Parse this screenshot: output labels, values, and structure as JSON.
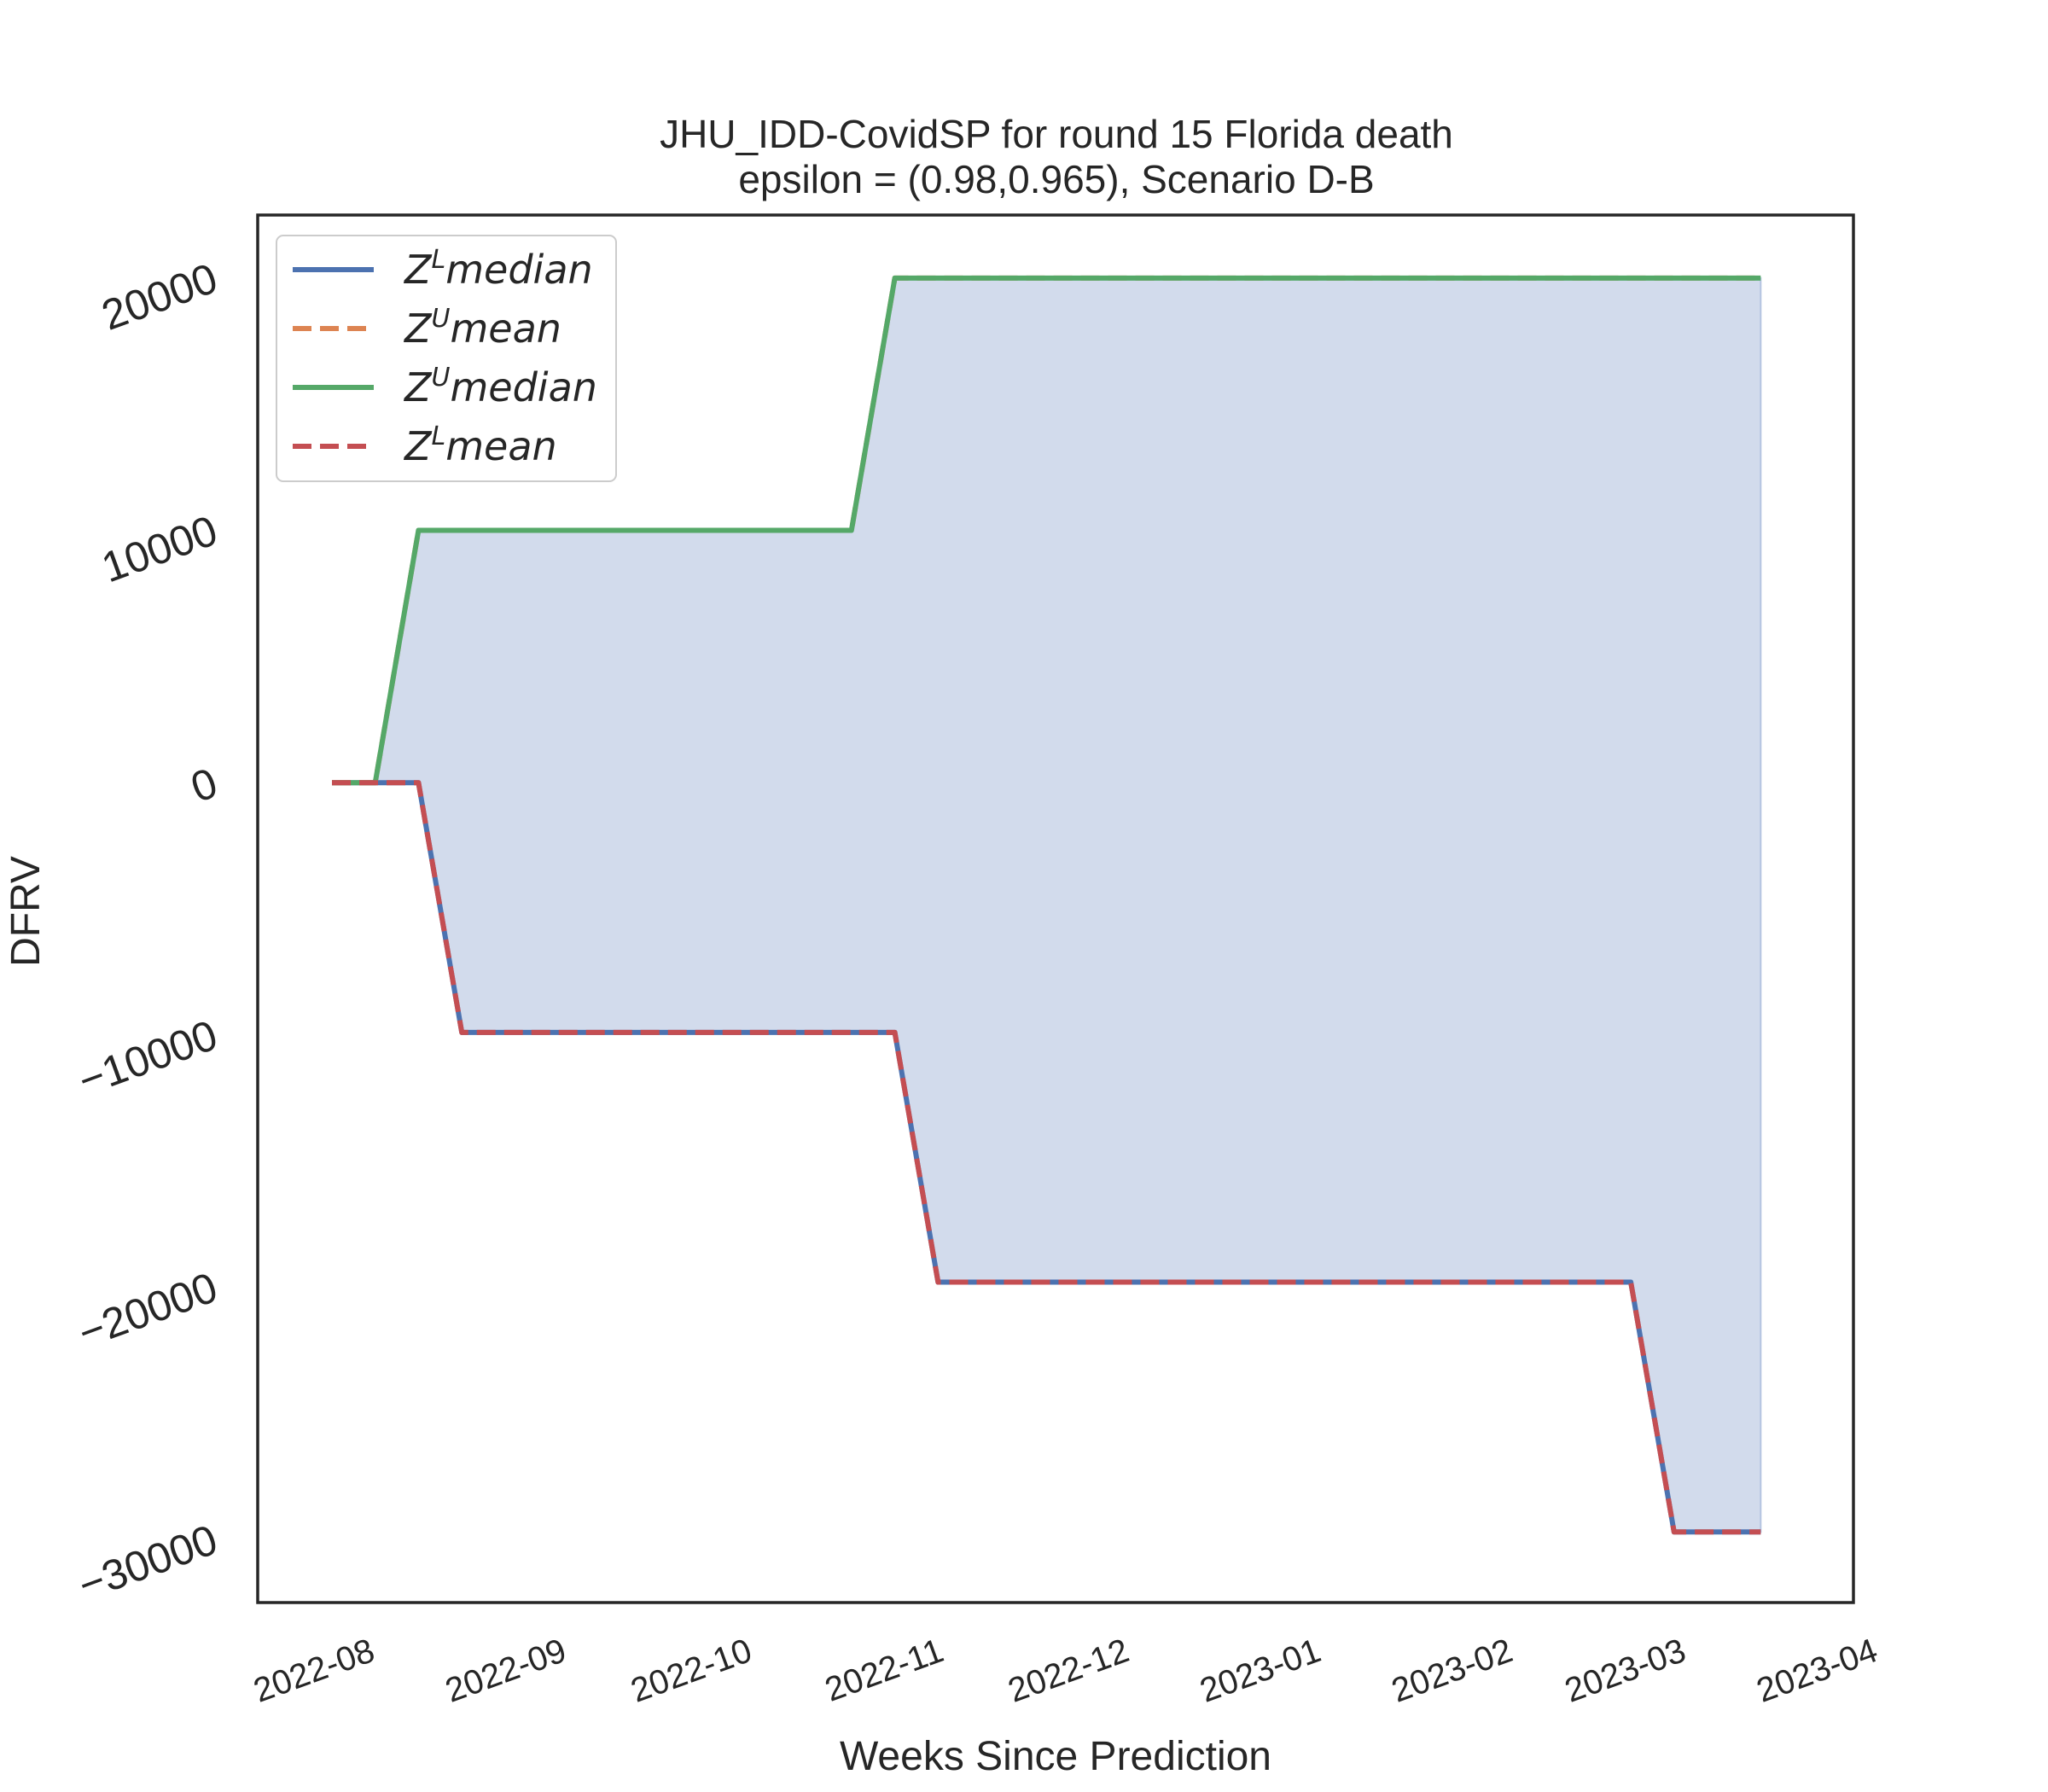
{
  "chart_data": {
    "type": "line",
    "title": "JHU_IDD-CovidSP for round 15 Florida  death",
    "subtitle": "epsilon = (0.98,0.965), Scenario D-B",
    "xlabel": "Weeks Since Prediction",
    "ylabel": "DFRV",
    "xlim": [
      "2022-07-18",
      "2023-04-02"
    ],
    "ylim": [
      -32500,
      22500
    ],
    "yticks": [
      20000,
      10000,
      0,
      -10000,
      -20000,
      -30000
    ],
    "ytick_labels": [
      "20000",
      "10000",
      "0",
      "−10000",
      "−20000",
      "−30000"
    ],
    "xticks": [
      "2022-08-01",
      "2022-09-01",
      "2022-10-01",
      "2022-11-01",
      "2022-12-01",
      "2023-01-01",
      "2023-02-01",
      "2023-03-01",
      "2023-04-01"
    ],
    "xtick_labels": [
      "2022-08",
      "2022-09",
      "2022-10",
      "2022-11",
      "2022-12",
      "2023-01",
      "2023-02",
      "2023-03",
      "2023-04"
    ],
    "legend_position": "top-left",
    "grid": false,
    "fill_between": {
      "lower": "Z^L median",
      "upper": "Z^U median",
      "color": "#d2dbec"
    },
    "series": [
      {
        "name": "Z^L median",
        "legend_base": "Z",
        "legend_sup": "L",
        "legend_rest": "median",
        "color": "#4c72b0",
        "style": "solid",
        "x": [
          "2022-07-30",
          "2022-08-06",
          "2022-08-13",
          "2022-08-20",
          "2022-08-27",
          "2022-09-03",
          "2022-09-10",
          "2022-09-17",
          "2022-09-24",
          "2022-10-01",
          "2022-10-08",
          "2022-10-15",
          "2022-10-22",
          "2022-10-29",
          "2022-11-05",
          "2022-11-12",
          "2022-11-19",
          "2022-11-26",
          "2022-12-03",
          "2022-12-10",
          "2022-12-17",
          "2022-12-24",
          "2022-12-31",
          "2023-01-07",
          "2023-01-14",
          "2023-01-21",
          "2023-01-28",
          "2023-02-04",
          "2023-02-11",
          "2023-02-18",
          "2023-02-25",
          "2023-03-04",
          "2023-03-11",
          "2023-03-18"
        ],
        "y": [
          0,
          0,
          0,
          -9900,
          -9900,
          -9900,
          -9900,
          -9900,
          -9900,
          -9900,
          -9900,
          -9900,
          -9900,
          -9900,
          -19800,
          -19800,
          -19800,
          -19800,
          -19800,
          -19800,
          -19800,
          -19800,
          -19800,
          -19800,
          -19800,
          -19800,
          -19800,
          -19800,
          -19800,
          -19800,
          -19800,
          -29700,
          -29700,
          -29700
        ]
      },
      {
        "name": "Z^U mean",
        "legend_base": "Z",
        "legend_sup": "U",
        "legend_rest": "mean",
        "color": "#dd8452",
        "style": "dashed",
        "x": [
          "2022-07-30",
          "2022-08-06",
          "2022-08-13",
          "2022-08-20",
          "2022-08-27",
          "2022-09-03",
          "2022-09-10",
          "2022-09-17",
          "2022-09-24",
          "2022-10-01",
          "2022-10-08",
          "2022-10-15",
          "2022-10-22",
          "2022-10-29",
          "2022-11-05",
          "2022-11-12",
          "2022-11-19",
          "2022-11-26",
          "2022-12-03",
          "2022-12-10",
          "2022-12-17",
          "2022-12-24",
          "2022-12-31",
          "2023-01-07",
          "2023-01-14",
          "2023-01-21",
          "2023-01-28",
          "2023-02-04",
          "2023-02-11",
          "2023-02-18",
          "2023-02-25",
          "2023-03-04",
          "2023-03-11",
          "2023-03-18"
        ],
        "y": [
          0,
          0,
          10000,
          10000,
          10000,
          10000,
          10000,
          10000,
          10000,
          10000,
          10000,
          10000,
          10000,
          20000,
          20000,
          20000,
          20000,
          20000,
          20000,
          20000,
          20000,
          20000,
          20000,
          20000,
          20000,
          20000,
          20000,
          20000,
          20000,
          20000,
          20000,
          20000,
          20000,
          20000
        ]
      },
      {
        "name": "Z^U median",
        "legend_base": "Z",
        "legend_sup": "U",
        "legend_rest": "median",
        "color": "#55a868",
        "style": "solid",
        "x": [
          "2022-07-30",
          "2022-08-06",
          "2022-08-13",
          "2022-08-20",
          "2022-08-27",
          "2022-09-03",
          "2022-09-10",
          "2022-09-17",
          "2022-09-24",
          "2022-10-01",
          "2022-10-08",
          "2022-10-15",
          "2022-10-22",
          "2022-10-29",
          "2022-11-05",
          "2022-11-12",
          "2022-11-19",
          "2022-11-26",
          "2022-12-03",
          "2022-12-10",
          "2022-12-17",
          "2022-12-24",
          "2022-12-31",
          "2023-01-07",
          "2023-01-14",
          "2023-01-21",
          "2023-01-28",
          "2023-02-04",
          "2023-02-11",
          "2023-02-18",
          "2023-02-25",
          "2023-03-04",
          "2023-03-11",
          "2023-03-18"
        ],
        "y": [
          0,
          0,
          10000,
          10000,
          10000,
          10000,
          10000,
          10000,
          10000,
          10000,
          10000,
          10000,
          10000,
          20000,
          20000,
          20000,
          20000,
          20000,
          20000,
          20000,
          20000,
          20000,
          20000,
          20000,
          20000,
          20000,
          20000,
          20000,
          20000,
          20000,
          20000,
          20000,
          20000,
          20000
        ]
      },
      {
        "name": "Z^L mean",
        "legend_base": "Z",
        "legend_sup": "L",
        "legend_rest": "mean",
        "color": "#c44e52",
        "style": "dashed",
        "x": [
          "2022-07-30",
          "2022-08-06",
          "2022-08-13",
          "2022-08-20",
          "2022-08-27",
          "2022-09-03",
          "2022-09-10",
          "2022-09-17",
          "2022-09-24",
          "2022-10-01",
          "2022-10-08",
          "2022-10-15",
          "2022-10-22",
          "2022-10-29",
          "2022-11-05",
          "2022-11-12",
          "2022-11-19",
          "2022-11-26",
          "2022-12-03",
          "2022-12-10",
          "2022-12-17",
          "2022-12-24",
          "2022-12-31",
          "2023-01-07",
          "2023-01-14",
          "2023-01-21",
          "2023-01-28",
          "2023-02-04",
          "2023-02-11",
          "2023-02-18",
          "2023-02-25",
          "2023-03-04",
          "2023-03-11",
          "2023-03-18"
        ],
        "y": [
          0,
          0,
          0,
          -9900,
          -9900,
          -9900,
          -9900,
          -9900,
          -9900,
          -9900,
          -9900,
          -9900,
          -9900,
          -9900,
          -19800,
          -19800,
          -19800,
          -19800,
          -19800,
          -19800,
          -19800,
          -19800,
          -19800,
          -19800,
          -19800,
          -19800,
          -19800,
          -19800,
          -19800,
          -19800,
          -19800,
          -29700,
          -29700,
          -29700
        ]
      }
    ]
  }
}
